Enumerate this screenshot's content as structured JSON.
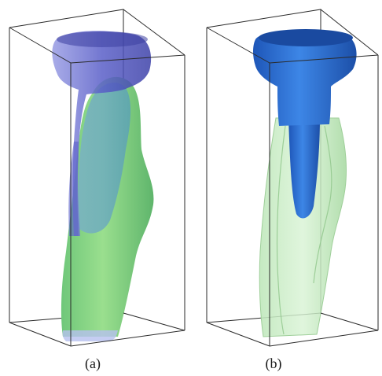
{
  "figure": {
    "panels": [
      {
        "label": "(a)"
      },
      {
        "label": "(b)"
      }
    ],
    "colors": {
      "box_edge": "#2a2a2a",
      "implant_blue_translucent": "#5a5fc8",
      "implant_blue_solid": "#2e6fd6",
      "bone_green": "#8fd68a",
      "bone_green_translucent": "#c9ecc6"
    }
  }
}
